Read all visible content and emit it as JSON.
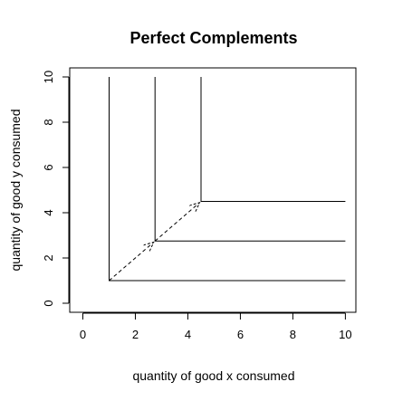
{
  "chart_data": {
    "type": "line",
    "title": "Perfect Complements",
    "xlabel": "quantity of good x consumed",
    "ylabel": "quantity of good y consumed",
    "xlim": [
      -0.5,
      10.4
    ],
    "ylim": [
      -0.4,
      10.4
    ],
    "xticks": [
      0,
      2,
      4,
      6,
      8,
      10
    ],
    "yticks": [
      0,
      2,
      4,
      6,
      8,
      10
    ],
    "xtick_labels": [
      "0",
      "2",
      "4",
      "6",
      "8",
      "10"
    ],
    "ytick_labels": [
      "0",
      "2",
      "4",
      "6",
      "8",
      "10"
    ],
    "grid": false,
    "line_color": "#000000",
    "series": [
      {
        "kind": "indifference-curve",
        "corner": [
          1.0,
          1.0
        ],
        "x": [
          1.0,
          1.0,
          10.0
        ],
        "y": [
          10.0,
          1.0,
          1.0
        ]
      },
      {
        "kind": "indifference-curve",
        "corner": [
          2.75,
          2.75
        ],
        "x": [
          2.75,
          2.75,
          10.0
        ],
        "y": [
          10.0,
          2.75,
          2.75
        ]
      },
      {
        "kind": "indifference-curve",
        "corner": [
          4.5,
          4.5
        ],
        "x": [
          4.5,
          4.5,
          10.0
        ],
        "y": [
          10.0,
          4.5,
          4.5
        ]
      }
    ],
    "arrows": [
      {
        "from": [
          1.0,
          1.0
        ],
        "to": [
          2.7,
          2.7
        ],
        "style": "dashed"
      },
      {
        "from": [
          2.75,
          2.75
        ],
        "to": [
          4.45,
          4.45
        ],
        "style": "dashed"
      }
    ]
  }
}
